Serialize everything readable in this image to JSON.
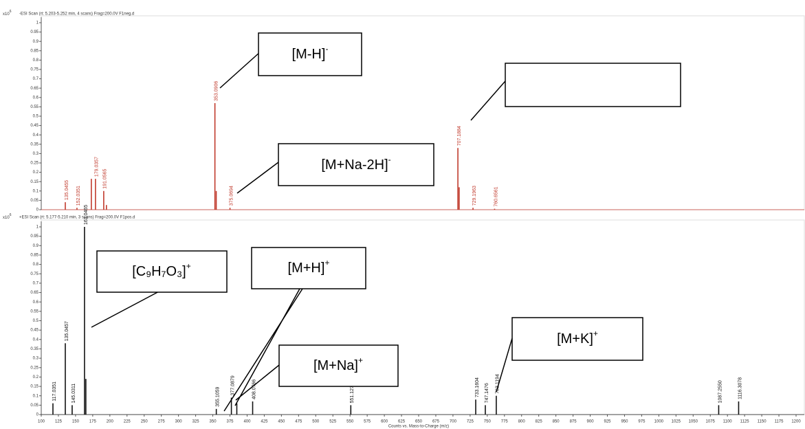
{
  "chart_data": [
    {
      "type": "spectrum",
      "header": "-ESI Scan (rt: 5.203-5.252 min, 4 scans) Frag=200.0V F1neg.d",
      "multiplier": "x10",
      "multiplier_exp": "6",
      "color": "#c0392b",
      "xlim": [
        100,
        1200
      ],
      "ylim": [
        0,
        1
      ],
      "yticks": [
        0,
        0.05,
        0.1,
        0.15,
        0.2,
        0.25,
        0.3,
        0.35,
        0.4,
        0.45,
        0.5,
        0.55,
        0.6,
        0.65,
        0.7,
        0.75,
        0.8,
        0.85,
        0.9,
        0.95,
        1
      ],
      "x": [
        135.0455,
        152.0351,
        173,
        179.0357,
        191.0565,
        195,
        353.0906,
        355,
        375.0694,
        707.1884,
        709,
        729.1963,
        760.6561
      ],
      "values": [
        0.04,
        0.01,
        0.165,
        0.165,
        0.1,
        0.025,
        0.57,
        0.1,
        0.01,
        0.33,
        0.12,
        0.01,
        0.005
      ],
      "x_labels": [
        "135.0455",
        "152.0351",
        null,
        "179.0357",
        "191.0565",
        null,
        "353.0906",
        null,
        "375.0694",
        "707.1884",
        null,
        "729.1963",
        "760.6561"
      ]
    },
    {
      "type": "spectrum",
      "header": "+ESI Scan (rt: 5.177-5.210 min, 3 scans) Frag=200.0V F1pos.d",
      "multiplier": "x10",
      "multiplier_exp": "6",
      "color": "#111111",
      "xlabel": "Counts vs. Mass-to-Charge (m/z)",
      "xlim": [
        100,
        1200
      ],
      "ylim": [
        0,
        1
      ],
      "yticks": [
        0,
        0.05,
        0.1,
        0.15,
        0.2,
        0.25,
        0.3,
        0.35,
        0.4,
        0.45,
        0.5,
        0.55,
        0.6,
        0.65,
        0.7,
        0.75,
        0.8,
        0.85,
        0.9,
        0.95,
        1
      ],
      "xticks": [
        100,
        125,
        150,
        175,
        200,
        225,
        250,
        275,
        300,
        325,
        350,
        375,
        400,
        425,
        450,
        475,
        500,
        525,
        550,
        575,
        600,
        625,
        650,
        675,
        700,
        725,
        750,
        775,
        800,
        825,
        850,
        875,
        900,
        925,
        950,
        975,
        1000,
        1025,
        1050,
        1075,
        1100,
        1125,
        1150,
        1175,
        1200
      ],
      "x": [
        117.0351,
        135.0457,
        145.0311,
        163.0465,
        165,
        355.1059,
        377.0879,
        385,
        408.0766,
        551.1275,
        733.1604,
        747.1476,
        763.1194,
        1087.255,
        1116.3078
      ],
      "values": [
        0.06,
        0.38,
        0.05,
        1,
        0.19,
        0.03,
        0.09,
        0.06,
        0.07,
        0.05,
        0.08,
        0.05,
        0.1,
        0.05,
        0.07
      ],
      "x_labels": [
        "117.0351",
        "135.0457",
        "145.0311",
        "163.0465",
        null,
        "355.1059",
        "377.0879",
        null,
        "408.0766",
        "551.1275",
        "733.1604",
        "747.1476",
        "763.1194",
        "1087.2550",
        "1116.3078"
      ]
    }
  ],
  "annotations": [
    {
      "text": "[M-H]",
      "sup": "-"
    },
    {
      "text": "[M+Na-2H]",
      "sup": "-"
    },
    {
      "text": "[C₉H₇O₃]",
      "sup": "+"
    },
    {
      "text": "[M+H]",
      "sup": "+"
    },
    {
      "text": "[M+Na]",
      "sup": "+"
    },
    {
      "text": "[M+K]",
      "sup": "+"
    }
  ]
}
